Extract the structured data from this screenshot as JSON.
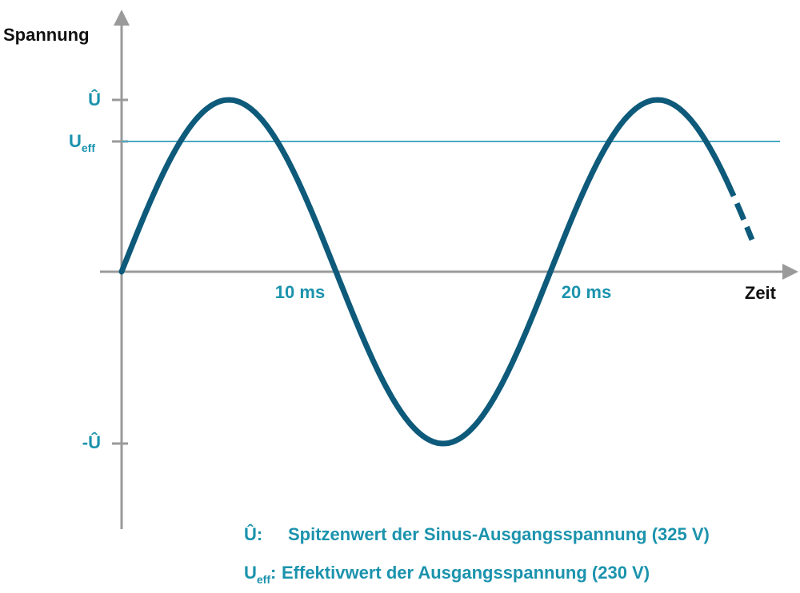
{
  "axes": {
    "y_label": "Spannung",
    "x_label": "Zeit"
  },
  "y_markers": {
    "peak": "Û",
    "rms": {
      "main": "U",
      "sub": "eff"
    },
    "trough": "-Û"
  },
  "x_markers": [
    "10 ms",
    "20 ms"
  ],
  "legend": [
    {
      "symbol": "Û",
      "separator": ":",
      "text": "Spitzenwert der Sinus-Ausgangsspannung (325 V)"
    },
    {
      "symbol": {
        "main": "U",
        "sub": "eff"
      },
      "separator": ":",
      "text": "Effektivwert der Ausgangsspannung (230 V)"
    }
  ]
}
